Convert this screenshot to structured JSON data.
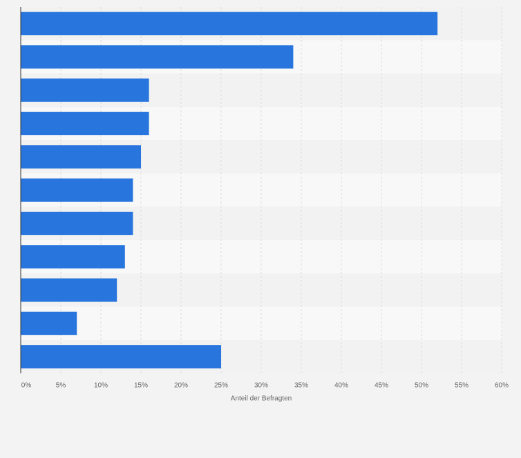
{
  "chart_data": {
    "type": "bar",
    "orientation": "horizontal",
    "categories": [
      "",
      "",
      "",
      "",
      "",
      "",
      "",
      "",
      "",
      "",
      ""
    ],
    "values": [
      52,
      34,
      16,
      16,
      15,
      14,
      14,
      13,
      12,
      7,
      25
    ],
    "xlabel": "Anteil der Befragten",
    "xlim": [
      0,
      60
    ],
    "xticks": [
      "0%",
      "5%",
      "10%",
      "15%",
      "20%",
      "25%",
      "30%",
      "35%",
      "40%",
      "45%",
      "50%",
      "55%",
      "60%"
    ],
    "grid": true,
    "legend": "none",
    "colors": {
      "bar": "#2876dd",
      "band_light": "#f8f8f8",
      "band_dark": "#f2f2f2",
      "page": "#f3f3f3",
      "grid": "#dcdcdc",
      "axis": "#333333",
      "tick_text": "#666666"
    }
  }
}
